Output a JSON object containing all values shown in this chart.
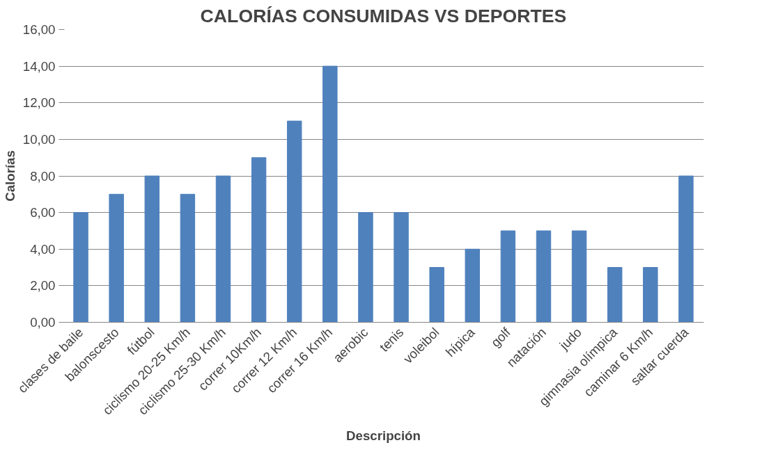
{
  "chart_data": {
    "type": "bar",
    "title": "CALORÍAS CONSUMIDAS VS DEPORTES",
    "xlabel": "Descripción",
    "ylabel": "Calorías",
    "categories": [
      "clases de baile",
      "balonscesto",
      "fútbol",
      "ciclismo 20-25 Km/h",
      "ciclismo 25-30 Km/h",
      "correr 10Km/h",
      "correr 12 Km/h",
      "correr 16 Km/h",
      "aerobic",
      "tenis",
      "voleibol",
      "hípica",
      "golf",
      "natación",
      "judo",
      "gimnasia olímpica",
      "caminar 6 Km/h",
      "saltar cuerda"
    ],
    "values": [
      6,
      7,
      8,
      7,
      8,
      9,
      11,
      14,
      6,
      6,
      3,
      4,
      5,
      5,
      5,
      3,
      3,
      8
    ],
    "color": "#4f81bd",
    "ylim": [
      0,
      16
    ],
    "yticks": [
      {
        "value": 0,
        "label": "0,00"
      },
      {
        "value": 2,
        "label": "2,00"
      },
      {
        "value": 4,
        "label": "4,00"
      },
      {
        "value": 6,
        "label": "6,00"
      },
      {
        "value": 8,
        "label": "8,00"
      },
      {
        "value": 10,
        "label": "10,00"
      },
      {
        "value": 12,
        "label": "12,00"
      },
      {
        "value": 14,
        "label": "14,00"
      },
      {
        "value": 16,
        "label": "16,00"
      }
    ],
    "grid": "y"
  }
}
